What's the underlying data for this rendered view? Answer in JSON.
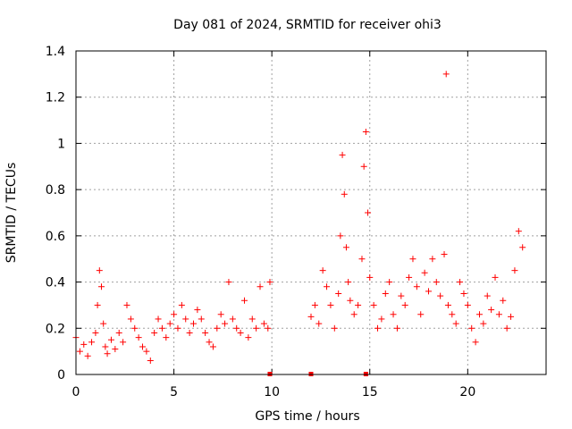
{
  "chart_data": {
    "type": "scatter",
    "title": "Day 081 of 2024, SRMTID for receiver ohi3",
    "xlabel": "GPS time / hours",
    "ylabel": "SRMTID / TECUs",
    "xlim": [
      0,
      24
    ],
    "ylim": [
      0,
      1.4
    ],
    "xticks": [
      0,
      5,
      10,
      15,
      20
    ],
    "yticks": [
      0,
      0.2,
      0.4,
      0.6,
      0.8,
      1,
      1.2,
      1.4
    ],
    "xtick_labels": [
      "0",
      "5",
      "10",
      "15",
      "20"
    ],
    "ytick_labels": [
      "0",
      "0.2",
      "0.4",
      "0.6",
      "0.8",
      "1",
      "1.2",
      "1.4"
    ],
    "grid": true,
    "marker": "+",
    "color": "#ff0000",
    "series": [
      {
        "name": "SRMTID",
        "x": [
          0.0,
          0.2,
          0.4,
          0.6,
          0.8,
          1.0,
          1.1,
          1.2,
          1.3,
          1.4,
          1.5,
          1.6,
          1.8,
          2.0,
          2.2,
          2.4,
          2.6,
          2.8,
          3.0,
          3.2,
          3.4,
          3.6,
          3.8,
          4.0,
          4.2,
          4.4,
          4.6,
          4.8,
          5.0,
          5.2,
          5.4,
          5.6,
          5.8,
          6.0,
          6.2,
          6.4,
          6.6,
          6.8,
          7.0,
          7.2,
          7.4,
          7.6,
          7.8,
          8.0,
          8.2,
          8.4,
          8.6,
          8.8,
          9.0,
          9.2,
          9.4,
          9.6,
          9.8,
          9.9,
          12.0,
          12.2,
          12.4,
          12.6,
          12.8,
          13.0,
          13.2,
          13.4,
          13.5,
          13.6,
          13.7,
          13.8,
          13.9,
          14.0,
          14.2,
          14.4,
          14.6,
          14.7,
          14.8,
          14.9,
          15.0,
          15.2,
          15.4,
          15.6,
          15.8,
          16.0,
          16.2,
          16.4,
          16.6,
          16.8,
          17.0,
          17.2,
          17.4,
          17.6,
          17.8,
          18.0,
          18.2,
          18.4,
          18.6,
          18.8,
          18.9,
          19.0,
          19.2,
          19.4,
          19.6,
          19.8,
          20.0,
          20.2,
          20.4,
          20.6,
          20.8,
          21.0,
          21.2,
          21.4,
          21.6,
          21.8,
          22.0,
          22.2,
          22.4,
          22.6,
          22.8
        ],
        "y": [
          0.16,
          0.1,
          0.13,
          0.08,
          0.14,
          0.18,
          0.3,
          0.45,
          0.38,
          0.22,
          0.12,
          0.09,
          0.15,
          0.11,
          0.18,
          0.14,
          0.3,
          0.24,
          0.2,
          0.16,
          0.12,
          0.1,
          0.06,
          0.18,
          0.24,
          0.2,
          0.16,
          0.22,
          0.26,
          0.2,
          0.3,
          0.24,
          0.18,
          0.22,
          0.28,
          0.24,
          0.18,
          0.14,
          0.12,
          0.2,
          0.26,
          0.22,
          0.4,
          0.24,
          0.2,
          0.18,
          0.32,
          0.16,
          0.24,
          0.2,
          0.38,
          0.22,
          0.2,
          0.4,
          0.25,
          0.3,
          0.22,
          0.45,
          0.38,
          0.3,
          0.2,
          0.35,
          0.6,
          0.95,
          0.78,
          0.55,
          0.4,
          0.32,
          0.26,
          0.3,
          0.5,
          0.9,
          1.05,
          0.7,
          0.42,
          0.3,
          0.2,
          0.24,
          0.35,
          0.4,
          0.26,
          0.2,
          0.34,
          0.3,
          0.42,
          0.5,
          0.38,
          0.26,
          0.44,
          0.36,
          0.5,
          0.4,
          0.34,
          0.52,
          1.3,
          0.3,
          0.26,
          0.22,
          0.4,
          0.35,
          0.3,
          0.2,
          0.14,
          0.26,
          0.22,
          0.34,
          0.28,
          0.42,
          0.26,
          0.32,
          0.2,
          0.25,
          0.45,
          0.62,
          0.55
        ]
      }
    ],
    "zero_markers_x": [
      9.9,
      12.0,
      14.8
    ]
  }
}
